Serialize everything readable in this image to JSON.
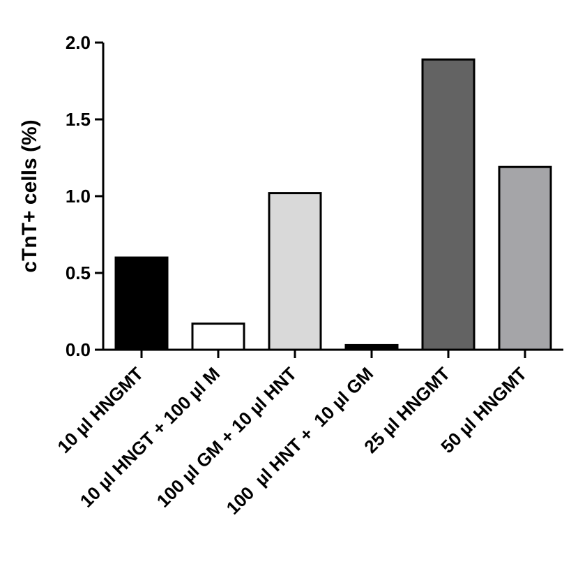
{
  "chart_data": {
    "type": "bar",
    "title": "",
    "xlabel": "",
    "ylabel": "cTnT+ cells (%)",
    "ylim": [
      0,
      2.0
    ],
    "yticks": [
      "0.0",
      "0.5",
      "1.0",
      "1.5",
      "2.0"
    ],
    "grid": false,
    "categories": [
      "10 µl HNGMT",
      "10 µl HNGT + 100 µl M",
      "100 µl GM + 10 µl HNT",
      "100  µl HNT +  10 µl GM",
      "25 µl HNGMT",
      "50 µl HNGMT"
    ],
    "values": [
      0.6,
      0.17,
      1.02,
      0.03,
      1.89,
      1.19
    ],
    "colors": [
      "#000000",
      "#ffffff",
      "#d9d9d9",
      "#000000",
      "#636363",
      "#a5a5a8"
    ]
  }
}
